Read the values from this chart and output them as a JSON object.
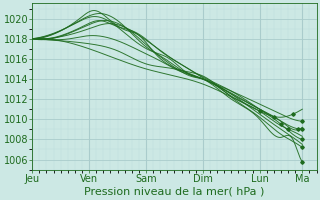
{
  "background_color": "#cce8e4",
  "plot_bg_color": "#cce8e4",
  "grid_major_color": "#aacccc",
  "grid_minor_color": "#bbdddd",
  "line_color": "#1e6b1e",
  "xlabel": "Pression niveau de la mer( hPa )",
  "ylim": [
    1005.0,
    1021.5
  ],
  "yticks": [
    1006,
    1008,
    1010,
    1012,
    1014,
    1016,
    1018,
    1020
  ],
  "xtick_labels": [
    "Jeu",
    "Ven",
    "Sam",
    "Dim",
    "Lun",
    "Ma"
  ],
  "xtick_positions": [
    0,
    24,
    48,
    72,
    96,
    114
  ],
  "xlim": [
    0,
    120
  ],
  "xlabel_fontsize": 8,
  "ytick_fontsize": 7,
  "xtick_fontsize": 7
}
